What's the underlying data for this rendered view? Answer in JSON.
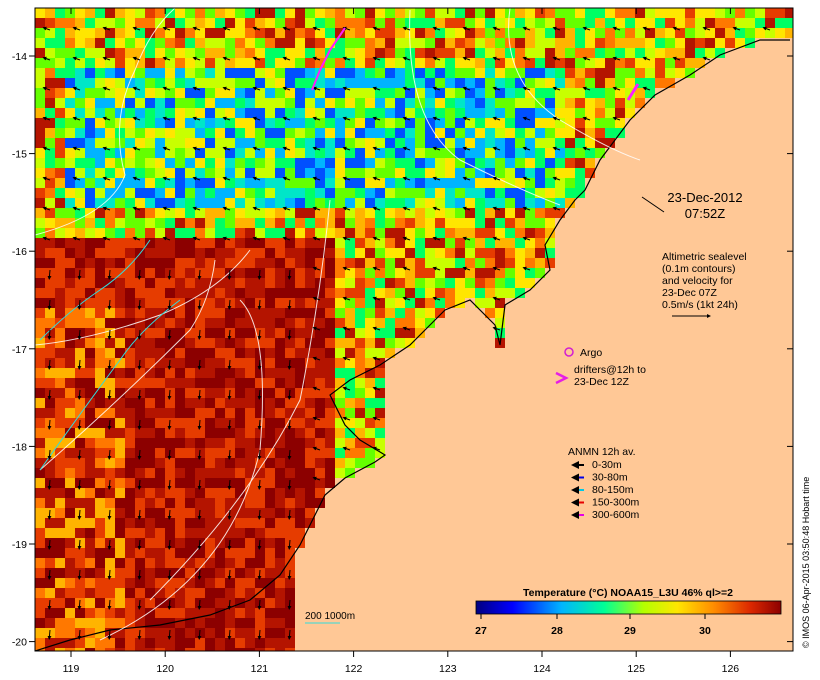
{
  "map": {
    "date": "23-Dec-2012",
    "time": "07:52Z",
    "x_ticks": [
      "119",
      "120",
      "121",
      "122",
      "123",
      "124",
      "125",
      "126"
    ],
    "y_ticks": [
      "-14",
      "-15",
      "-16",
      "-17",
      "-18",
      "-19",
      "-20"
    ]
  },
  "altimetry": {
    "lines": [
      "Altimetric sealevel",
      "(0.1m contours)",
      "and velocity for",
      "23-Dec 07Z",
      "0.5m/s (1kt 24h)"
    ]
  },
  "argo": {
    "label": "Argo",
    "color": "#d21ed2"
  },
  "drifters": {
    "lines": [
      "drifters@12h to",
      "23-Dec 12Z"
    ],
    "color": "#e61ee6"
  },
  "anmn": {
    "title": "ANMN 12h av.",
    "items": [
      {
        "label": "0-30m",
        "color": "#000000"
      },
      {
        "label": "30-80m",
        "color": "#0000e6"
      },
      {
        "label": "80-150m",
        "color": "#00c8e6"
      },
      {
        "label": "150-300m",
        "color": "#e60000"
      },
      {
        "label": "300-600m",
        "color": "#e600e6"
      }
    ]
  },
  "colorbar": {
    "title": "Temperature (°C) NOAA15_L3U 46% ql>=2",
    "ticks": [
      "27",
      "28",
      "29",
      "30"
    ]
  },
  "scale": {
    "label": "200  1000m"
  },
  "credit": "© IMOS 06-Apr-2015 03:50:48 Hobart time",
  "colors": {
    "land": "#ffc896",
    "ocean_warm": "#aa1400",
    "ocean_cool": "#1432a0"
  }
}
